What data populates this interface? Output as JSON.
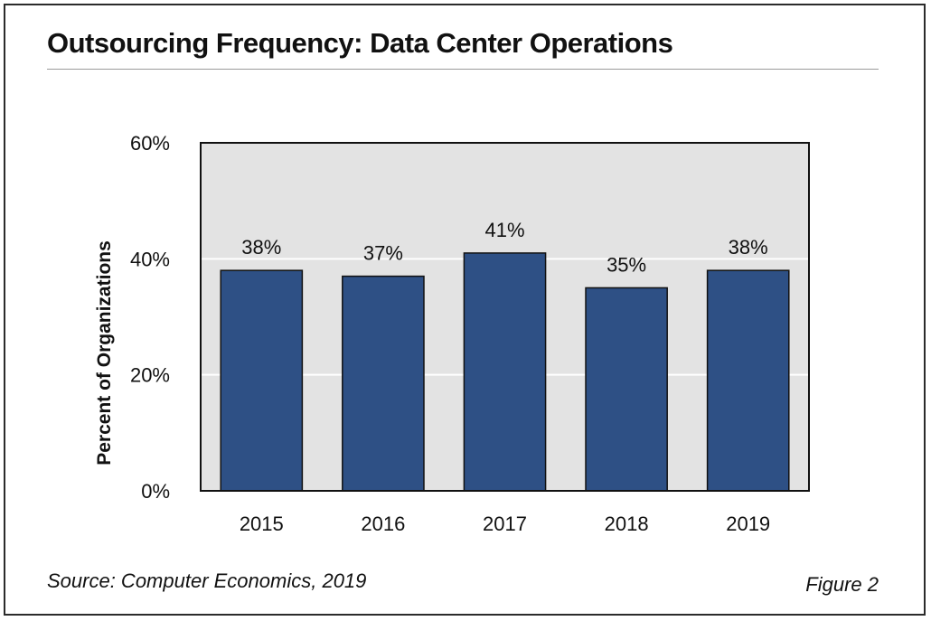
{
  "title": "Outsourcing Frequency: Data Center Operations",
  "source": "Source: Computer Economics, 2019",
  "figure_label": "Figure 2",
  "colors": {
    "bar": "#2e5085",
    "plot_background": "#e3e3e3",
    "gridline": "#ffffff",
    "border": "#111111"
  },
  "chart_data": {
    "type": "bar",
    "categories": [
      "2015",
      "2016",
      "2017",
      "2018",
      "2019"
    ],
    "values": [
      38,
      37,
      41,
      35,
      38
    ],
    "data_labels": [
      "38%",
      "37%",
      "41%",
      "35%",
      "38%"
    ],
    "title": "Outsourcing Frequency: Data Center Operations",
    "xlabel": "",
    "ylabel": "Percent of Organizations",
    "ylim": [
      0,
      60
    ],
    "yticks": [
      0,
      20,
      40,
      60
    ],
    "ytick_labels": [
      "0%",
      "20%",
      "40%",
      "60%"
    ],
    "grid": true,
    "legend": "none"
  }
}
